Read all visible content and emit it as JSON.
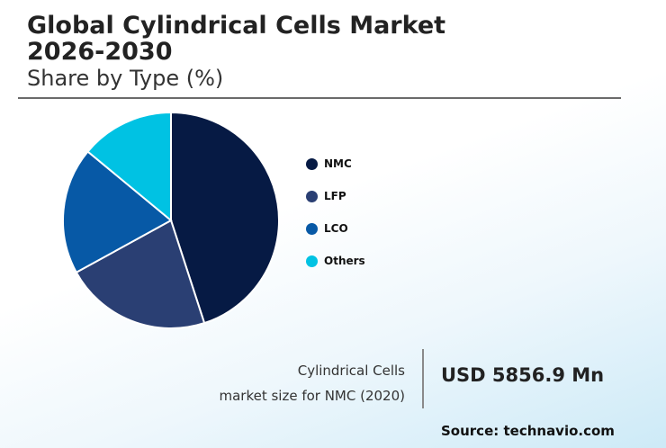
{
  "header": {
    "title_line1": "Global Cylindrical Cells Market",
    "title_line2": "2026-2030",
    "subtitle": "Share by Type (%)"
  },
  "chart_data": {
    "type": "pie",
    "title": "Global Cylindrical Cells Market 2026-2030",
    "subtitle": "Share by Type (%)",
    "categories": [
      "NMC",
      "LFP",
      "LCO",
      "Others"
    ],
    "values": [
      45,
      22,
      19,
      14
    ],
    "colors": [
      "#061a44",
      "#2a3f73",
      "#0759a6",
      "#00c2e3"
    ],
    "legend_position": "right"
  },
  "footer": {
    "market_label_line1": "Cylindrical Cells",
    "market_label_line2": "market size for NMC (2020)",
    "market_value": "USD 5856.9 Mn",
    "source": "Source: technavio.com"
  }
}
